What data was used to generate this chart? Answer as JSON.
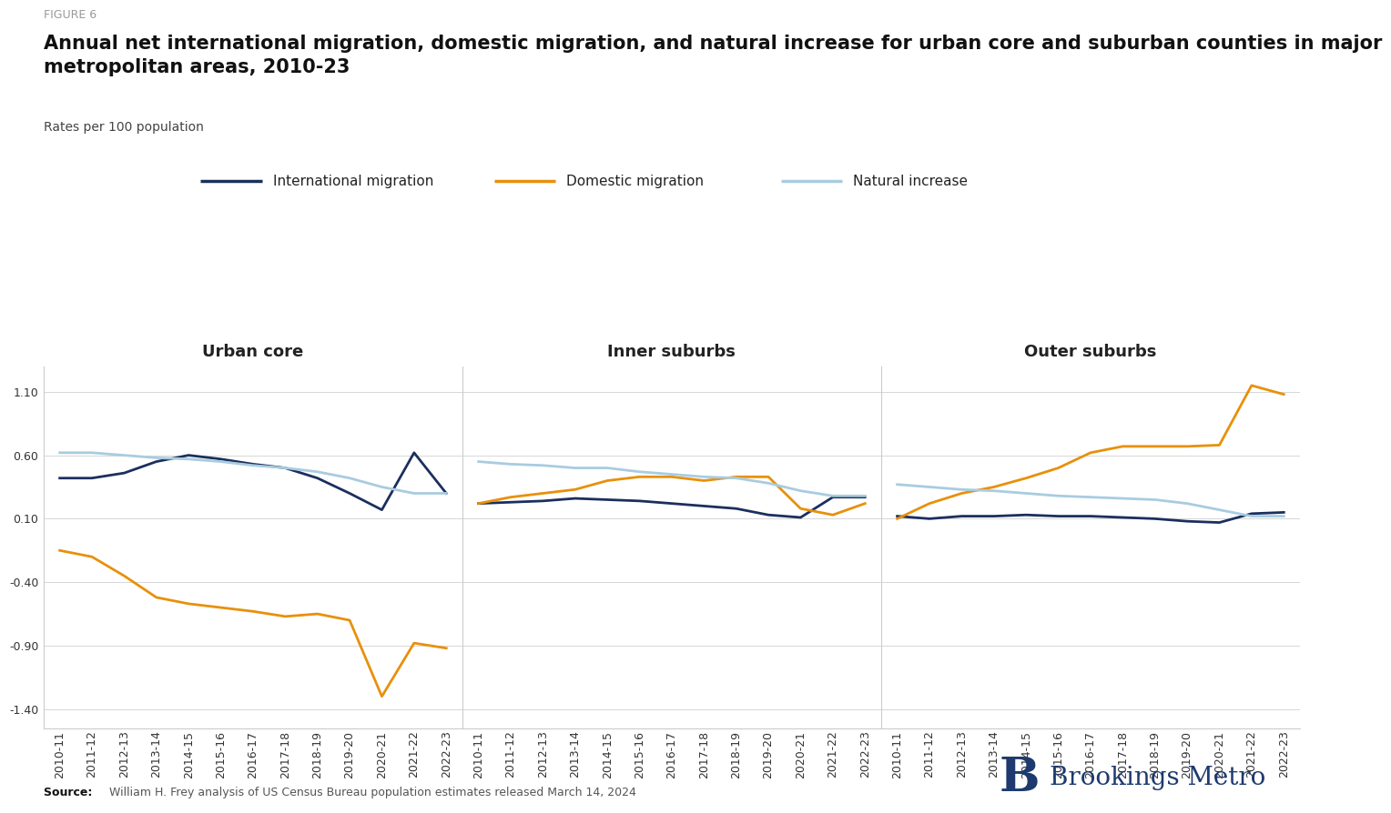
{
  "figure_label": "FIGURE 6",
  "title": "Annual net international migration, domestic migration, and natural increase for urban core and suburban counties in major\nmetropolitan areas, 2010-23",
  "subtitle": "Rates per 100 population",
  "source_text": "William H. Frey analysis of US Census Bureau population estimates released March 14, 2024",
  "x_labels": [
    "2010-11",
    "2011-12",
    "2012-13",
    "2013-14",
    "2014-15",
    "2015-16",
    "2016-17",
    "2017-18",
    "2018-19",
    "2019-20",
    "2020-21",
    "2021-22",
    "2022-23"
  ],
  "panels": [
    "Urban core",
    "Inner suburbs",
    "Outer suburbs"
  ],
  "series_order": [
    "international_migration",
    "domestic_migration",
    "natural_increase"
  ],
  "series": {
    "international_migration": {
      "label": "International migration",
      "color": "#1b2f5e",
      "linewidth": 2.0,
      "urban_core": [
        0.42,
        0.42,
        0.46,
        0.55,
        0.6,
        0.57,
        0.53,
        0.5,
        0.42,
        0.3,
        0.17,
        0.62,
        0.3
      ],
      "inner_suburbs": [
        0.22,
        0.23,
        0.24,
        0.26,
        0.25,
        0.24,
        0.22,
        0.2,
        0.18,
        0.13,
        0.11,
        0.27,
        0.27
      ],
      "outer_suburbs": [
        0.12,
        0.1,
        0.12,
        0.12,
        0.13,
        0.12,
        0.12,
        0.11,
        0.1,
        0.08,
        0.07,
        0.14,
        0.15
      ]
    },
    "domestic_migration": {
      "label": "Domestic migration",
      "color": "#e8900a",
      "linewidth": 2.0,
      "urban_core": [
        -0.15,
        -0.2,
        -0.35,
        -0.52,
        -0.57,
        -0.6,
        -0.63,
        -0.67,
        -0.65,
        -0.7,
        -1.3,
        -0.88,
        -0.92
      ],
      "inner_suburbs": [
        0.22,
        0.27,
        0.3,
        0.33,
        0.4,
        0.43,
        0.43,
        0.4,
        0.43,
        0.43,
        0.18,
        0.13,
        0.22
      ],
      "outer_suburbs": [
        0.1,
        0.22,
        0.3,
        0.35,
        0.42,
        0.5,
        0.62,
        0.67,
        0.67,
        0.67,
        0.68,
        1.15,
        1.08
      ]
    },
    "natural_increase": {
      "label": "Natural increase",
      "color": "#a8cce0",
      "linewidth": 2.0,
      "urban_core": [
        0.62,
        0.62,
        0.6,
        0.58,
        0.57,
        0.55,
        0.52,
        0.5,
        0.47,
        0.42,
        0.35,
        0.3,
        0.3
      ],
      "inner_suburbs": [
        0.55,
        0.53,
        0.52,
        0.5,
        0.5,
        0.47,
        0.45,
        0.43,
        0.42,
        0.38,
        0.32,
        0.28,
        0.28
      ],
      "outer_suburbs": [
        0.37,
        0.35,
        0.33,
        0.32,
        0.3,
        0.28,
        0.27,
        0.26,
        0.25,
        0.22,
        0.17,
        0.12,
        0.12
      ]
    }
  },
  "ylim": [
    -1.55,
    1.3
  ],
  "yticks": [
    1.1,
    0.6,
    0.1,
    -0.4,
    -0.9,
    -1.4
  ],
  "ytick_labels": [
    "1.10",
    "0.60",
    "0.10",
    "-0.40",
    "-0.90",
    "-1.40"
  ],
  "background_color": "#ffffff",
  "panel_title_fontsize": 13,
  "tick_fontsize": 9,
  "title_fontsize": 15,
  "subtitle_fontsize": 10,
  "figure_label_fontsize": 9,
  "legend_fontsize": 11,
  "colors": {
    "grid": "#d0d0d0",
    "border": "#cccccc",
    "figure_label": "#999999",
    "title": "#111111",
    "subtitle": "#444444",
    "source": "#555555",
    "panel_title": "#222222",
    "brookings_blue": "#1e3a6e"
  }
}
